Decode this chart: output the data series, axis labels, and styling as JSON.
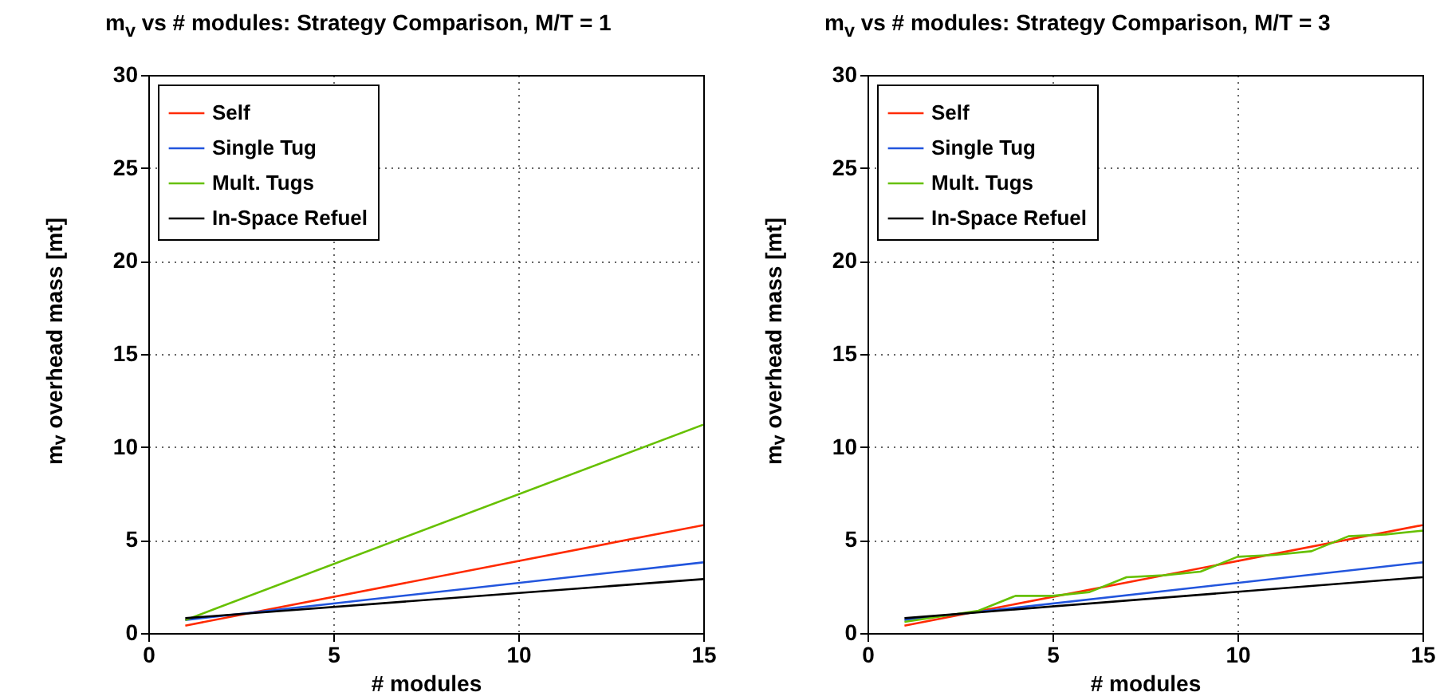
{
  "chart_data": [
    {
      "type": "line",
      "title": "m$_{v}$ vs # modules: Strategy Comparison, M/T = 1",
      "xlabel": "# modules",
      "ylabel": "m$_{v}$ overhead mass [mt]",
      "xlim": [
        0,
        15
      ],
      "ylim": [
        0,
        30
      ],
      "xticks": [
        0,
        5,
        10,
        15
      ],
      "yticks": [
        0,
        5,
        10,
        15,
        20,
        25,
        30
      ],
      "grid": true,
      "legend": "top left",
      "series": [
        {
          "name": "Self",
          "color": "#ff2a00",
          "x": [
            1,
            15
          ],
          "values": [
            0.4,
            5.8
          ]
        },
        {
          "name": "Single Tug",
          "color": "#2255dd",
          "x": [
            1,
            15
          ],
          "values": [
            0.7,
            3.8
          ]
        },
        {
          "name": "Mult. Tugs",
          "color": "#66c000",
          "x": [
            1,
            15
          ],
          "values": [
            0.7,
            11.2
          ]
        },
        {
          "name": "In-Space Refuel",
          "color": "#000000",
          "x": [
            1,
            15
          ],
          "values": [
            0.8,
            2.9
          ]
        }
      ]
    },
    {
      "type": "line",
      "title": "m$_{v}$ vs # modules: Strategy Comparison, M/T = 3",
      "xlabel": "# modules",
      "ylabel": "m$_{v}$ overhead mass [mt]",
      "xlim": [
        0,
        15
      ],
      "ylim": [
        0,
        30
      ],
      "xticks": [
        0,
        5,
        10,
        15
      ],
      "yticks": [
        0,
        5,
        10,
        15,
        20,
        25,
        30
      ],
      "grid": true,
      "legend": "top left",
      "series": [
        {
          "name": "Self",
          "color": "#ff2a00",
          "x": [
            1,
            15
          ],
          "values": [
            0.4,
            5.8
          ]
        },
        {
          "name": "Single Tug",
          "color": "#2255dd",
          "x": [
            1,
            15
          ],
          "values": [
            0.7,
            3.8
          ]
        },
        {
          "name": "Mult. Tugs",
          "color": "#66c000",
          "x": [
            1,
            2,
            3,
            4,
            5,
            6,
            7,
            8,
            9,
            10,
            11,
            12,
            13,
            14,
            15
          ],
          "values": [
            0.6,
            0.9,
            1.2,
            2.0,
            2.0,
            2.2,
            3.0,
            3.1,
            3.3,
            4.1,
            4.2,
            4.4,
            5.2,
            5.3,
            5.5
          ]
        },
        {
          "name": "In-Space Refuel",
          "color": "#000000",
          "x": [
            1,
            15
          ],
          "values": [
            0.8,
            3.0
          ]
        }
      ]
    }
  ]
}
